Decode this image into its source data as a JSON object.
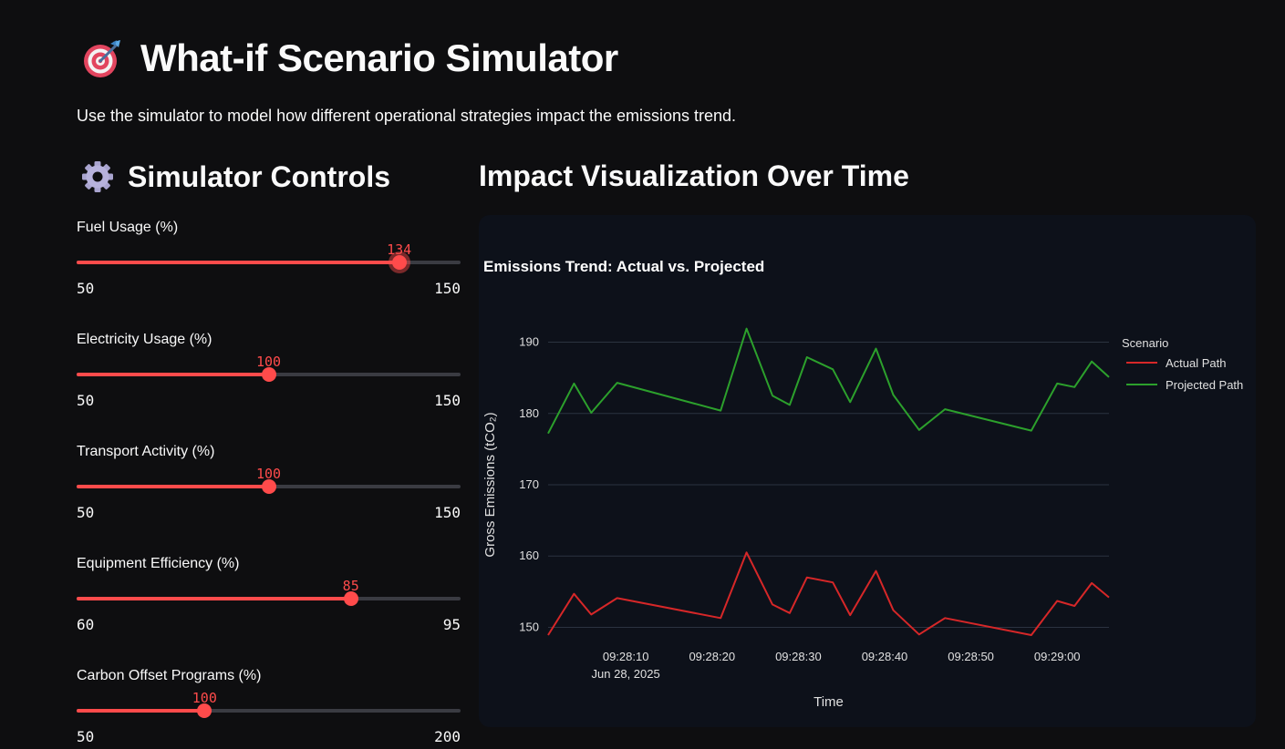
{
  "header": {
    "title": "What-if Scenario Simulator",
    "subtitle": "Use the simulator to model how different operational strategies impact the emissions trend."
  },
  "controls": {
    "title": "Simulator Controls",
    "sliders": [
      {
        "label": "Fuel Usage (%)",
        "value": 134,
        "min": 50,
        "max": 150,
        "focused": true
      },
      {
        "label": "Electricity Usage (%)",
        "value": 100,
        "min": 50,
        "max": 150,
        "focused": false
      },
      {
        "label": "Transport Activity (%)",
        "value": 100,
        "min": 50,
        "max": 150,
        "focused": false
      },
      {
        "label": "Equipment Efficiency (%)",
        "value": 85,
        "min": 60,
        "max": 95,
        "focused": false
      },
      {
        "label": "Carbon Offset Programs (%)",
        "value": 100,
        "min": 50,
        "max": 200,
        "focused": false
      }
    ]
  },
  "visualization": {
    "title": "Impact Visualization Over Time"
  },
  "colors": {
    "accent": "#ff4b4b",
    "actual": "#d62728",
    "projected": "#2ca02c"
  },
  "chart_data": {
    "type": "line",
    "title": "Emissions Trend: Actual vs. Projected",
    "xlabel": "Time",
    "ylabel": "Gross Emissions (tCO₂)",
    "ylim": [
      147.5,
      192.5
    ],
    "yticks": [
      150,
      160,
      170,
      180,
      190
    ],
    "xlim": [
      "09:28:01",
      "09:29:06"
    ],
    "xticks": [
      {
        "t": "09:28:10",
        "label": "09:28:10",
        "sub": "Jun 28, 2025"
      },
      {
        "t": "09:28:20",
        "label": "09:28:20",
        "sub": ""
      },
      {
        "t": "09:28:30",
        "label": "09:28:30",
        "sub": ""
      },
      {
        "t": "09:28:40",
        "label": "09:28:40",
        "sub": ""
      },
      {
        "t": "09:28:50",
        "label": "09:28:50",
        "sub": ""
      },
      {
        "t": "09:29:00",
        "label": "09:29:00",
        "sub": ""
      }
    ],
    "legend_title": "Scenario",
    "legend_position": "right",
    "grid": true,
    "x": [
      "09:28:01",
      "09:28:04",
      "09:28:06",
      "09:28:09",
      "09:28:21",
      "09:28:24",
      "09:28:27",
      "09:28:29",
      "09:28:31",
      "09:28:34",
      "09:28:36",
      "09:28:39",
      "09:28:41",
      "09:28:44",
      "09:28:47",
      "09:28:57",
      "09:29:00",
      "09:29:02",
      "09:29:04",
      "09:29:06"
    ],
    "series": [
      {
        "name": "Actual Path",
        "color": "#d62728",
        "values": [
          148.9,
          154.7,
          151.8,
          154.1,
          151.3,
          160.5,
          153.2,
          152.0,
          157.0,
          156.3,
          151.7,
          157.9,
          152.4,
          149.0,
          151.3,
          148.9,
          153.7,
          153.0,
          156.2,
          154.2
        ]
      },
      {
        "name": "Projected Path",
        "color": "#2ca02c",
        "values": [
          177.2,
          184.2,
          180.1,
          184.3,
          180.4,
          191.9,
          182.5,
          181.2,
          187.9,
          186.2,
          181.6,
          189.1,
          182.6,
          177.7,
          180.6,
          177.6,
          184.2,
          183.7,
          187.3,
          185.1
        ]
      }
    ]
  }
}
